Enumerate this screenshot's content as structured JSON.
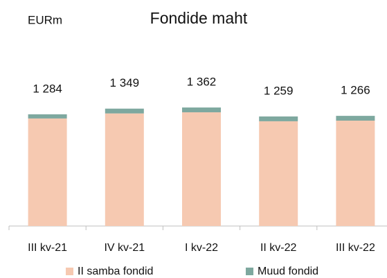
{
  "chart_data": {
    "type": "stacked_bar",
    "title": "Fondide maht",
    "unit_label": "EURm",
    "categories": [
      "III kv-21",
      "IV kv-21",
      "I kv-22",
      "II kv-22",
      "III kv-22"
    ],
    "series": [
      {
        "name": "II samba fondid",
        "color": "#f6c9b1",
        "values": [
          1236,
          1294,
          1307,
          1204,
          1211
        ]
      },
      {
        "name": "Muud fondid",
        "color": "#7ea89f",
        "values": [
          48,
          55,
          55,
          55,
          55
        ]
      }
    ],
    "totals": [
      1284,
      1349,
      1362,
      1259,
      1266
    ],
    "total_labels": [
      "1 284",
      "1 349",
      "1 362",
      "1 259",
      "1 266"
    ],
    "legend": "bottom"
  }
}
